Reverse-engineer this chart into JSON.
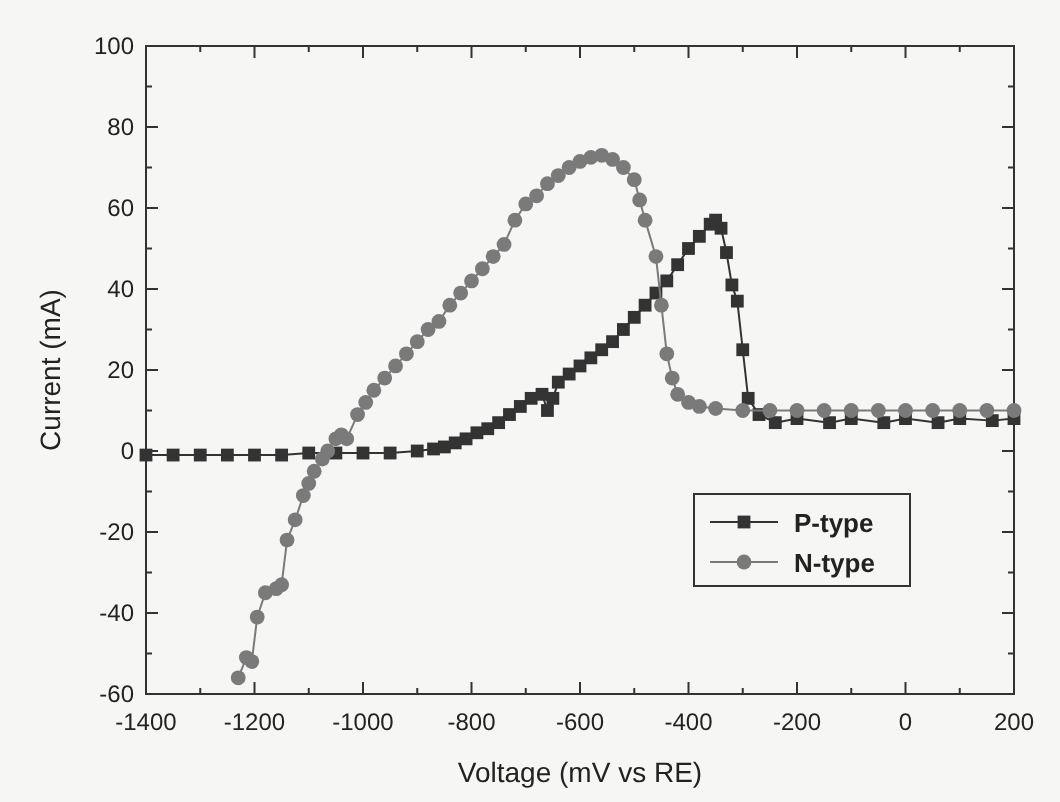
{
  "chart_data": {
    "type": "line",
    "xlabel": "Voltage (mV vs RE)",
    "ylabel": "Current (mA)",
    "xlim": [
      -1400,
      200
    ],
    "ylim": [
      -60,
      100
    ],
    "xticks": [
      -1400,
      {
        "value": -1300,
        "label": null
      },
      -1200,
      {
        "value": -1100,
        "label": null
      },
      -1000,
      {
        "value": -900,
        "label": null
      },
      -800,
      {
        "value": -700,
        "label": null
      },
      -600,
      {
        "value": -500,
        "label": null
      },
      -400,
      {
        "value": -300,
        "label": null
      },
      -200,
      {
        "value": -100,
        "label": null
      },
      0,
      {
        "value": 100,
        "label": null
      },
      200
    ],
    "yticks": [
      -60,
      {
        "value": -50,
        "label": null
      },
      -40,
      {
        "value": -30,
        "label": null
      },
      -20,
      {
        "value": -10,
        "label": null
      },
      0,
      {
        "value": 10,
        "label": null
      },
      20,
      {
        "value": 30,
        "label": null
      },
      40,
      {
        "value": 50,
        "label": null
      },
      60,
      {
        "value": 70,
        "label": null
      },
      80,
      {
        "value": 90,
        "label": null
      },
      100
    ],
    "grid": false,
    "legend": "bottom right",
    "line_style": "solid",
    "series": [
      {
        "name": "P-type",
        "color": "#333333",
        "marker": "square",
        "x": [
          -1400,
          -1350,
          -1300,
          -1250,
          -1200,
          -1150,
          -1100,
          -1050,
          -1000,
          -950,
          -900,
          -870,
          -850,
          -830,
          -810,
          -790,
          -770,
          -750,
          -730,
          -710,
          -690,
          -670,
          -660,
          -650,
          -640,
          -620,
          -600,
          -580,
          -560,
          -540,
          -520,
          -500,
          -480,
          -460,
          -440,
          -420,
          -400,
          -380,
          -360,
          -350,
          -340,
          -330,
          -320,
          -310,
          -300,
          -290,
          -270,
          -240,
          -200,
          -140,
          -100,
          -40,
          0,
          60,
          100,
          160,
          200
        ],
        "values": [
          -1,
          -1,
          -1,
          -1,
          -1,
          -1,
          -0.5,
          -0.5,
          -0.5,
          -0.5,
          0,
          0.5,
          1,
          2,
          3,
          4.5,
          5.5,
          7,
          9,
          11,
          13,
          14,
          10,
          13,
          17,
          19,
          21,
          23,
          25,
          27,
          30,
          33,
          36,
          39,
          42,
          46,
          50,
          53,
          56,
          57,
          55,
          49,
          41,
          37,
          25,
          13,
          9,
          7,
          8,
          7,
          8,
          7,
          8,
          7,
          8,
          7.5,
          8
        ]
      },
      {
        "name": "N-type",
        "color": "#7a7a7a",
        "marker": "circle",
        "x": [
          -1230,
          -1215,
          -1205,
          -1195,
          -1180,
          -1160,
          -1150,
          -1140,
          -1125,
          -1110,
          -1100,
          -1090,
          -1075,
          -1065,
          -1050,
          -1040,
          -1030,
          -1010,
          -995,
          -980,
          -960,
          -940,
          -920,
          -900,
          -880,
          -860,
          -840,
          -820,
          -800,
          -780,
          -760,
          -740,
          -720,
          -700,
          -680,
          -660,
          -640,
          -620,
          -600,
          -580,
          -560,
          -540,
          -520,
          -500,
          -490,
          -480,
          -460,
          -450,
          -440,
          -430,
          -420,
          -400,
          -380,
          -350,
          -300,
          -250,
          -200,
          -150,
          -100,
          -50,
          0,
          50,
          100,
          150,
          200
        ],
        "values": [
          -56,
          -51,
          -52,
          -41,
          -35,
          -34,
          -33,
          -22,
          -17,
          -11,
          -8,
          -5,
          -2,
          0,
          3,
          4,
          3,
          9,
          12,
          15,
          18,
          21,
          24,
          27,
          30,
          32,
          36,
          39,
          42,
          45,
          48,
          51,
          57,
          61,
          63,
          66,
          68,
          70,
          71.5,
          72.5,
          73,
          72,
          70,
          67,
          62,
          57,
          48,
          36,
          24,
          18,
          14,
          12,
          11,
          10.5,
          10,
          10,
          10,
          10,
          10,
          10,
          10,
          10,
          10,
          10,
          10
        ]
      }
    ]
  }
}
